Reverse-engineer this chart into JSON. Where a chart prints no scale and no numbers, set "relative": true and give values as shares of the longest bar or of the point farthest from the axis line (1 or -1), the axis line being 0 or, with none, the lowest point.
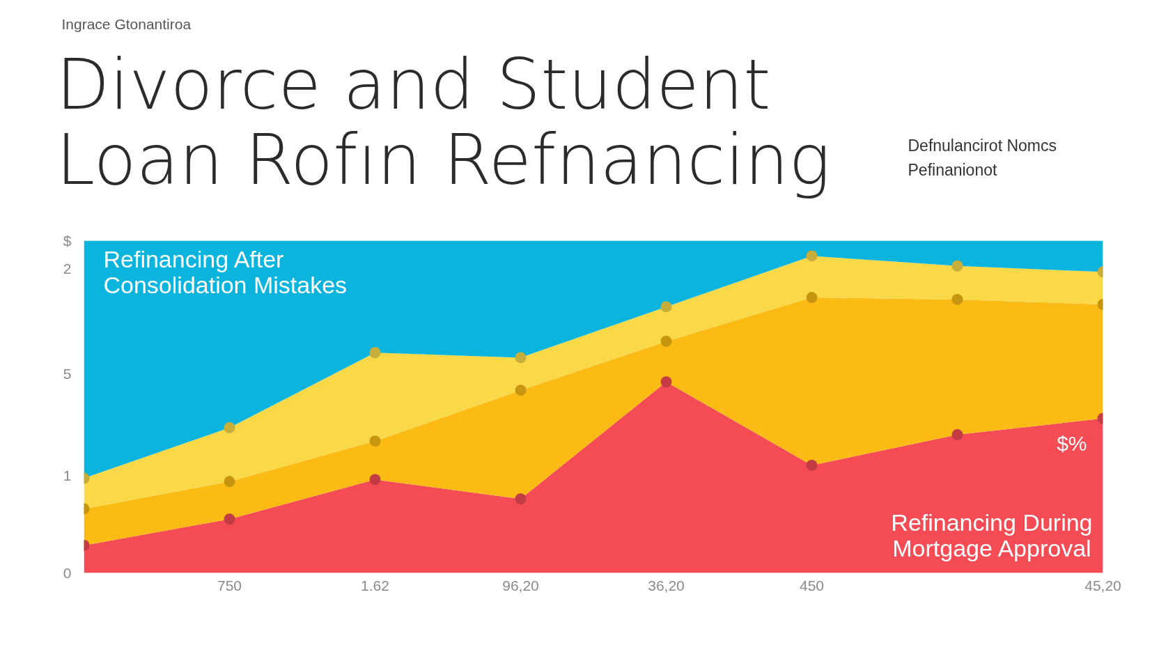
{
  "chart_data": {
    "type": "area",
    "stacked": true,
    "relative": true,
    "subtitle": "Ingrace Gtonantiroa",
    "title": "Divorce and Student\nLoan Rofın Refnancing",
    "categories": [
      null,
      "750",
      "1.62",
      "96,20",
      "36,20",
      "450",
      null,
      "45,20"
    ],
    "marker": "circle",
    "series": [
      {
        "color": "#f44b55",
        "values": [
          0.083,
          0.162,
          0.281,
          0.223,
          0.575,
          0.324,
          0.416,
          0.465
        ]
      },
      {
        "color": "#fbbb14",
        "values": [
          0.11,
          0.113,
          0.116,
          0.327,
          0.122,
          0.505,
          0.407,
          0.343
        ]
      },
      {
        "color": "#f9d948",
        "values": [
          0.092,
          0.162,
          0.266,
          0.098,
          0.104,
          0.125,
          0.101,
          0.098
        ]
      },
      {
        "color": "#0bb4dd",
        "marker": "none",
        "values": [
          0.715,
          0.563,
          0.337,
          0.352,
          0.199,
          0.046,
          0.076,
          0.094
        ]
      }
    ],
    "annotations": [
      "Refinancing After\nConsolidation Mistakes",
      "$%",
      "Refinancing During\nMortgage Approval",
      "Defnulancirot Nomcs",
      "Pefinanionot",
      "$",
      "2",
      "5",
      "1",
      "0"
    ]
  }
}
